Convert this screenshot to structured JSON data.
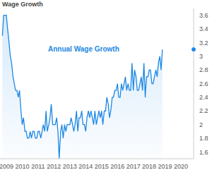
{
  "chart_data": {
    "type": "area",
    "title": "Wage Growth",
    "annotation": "Annual Wage Growth",
    "color": "#1e88e5",
    "grid": false,
    "x": [
      2008.75,
      2008.83,
      2008.92,
      2009.0,
      2009.08,
      2009.17,
      2009.25,
      2009.33,
      2009.42,
      2009.5,
      2009.58,
      2009.67,
      2009.75,
      2009.83,
      2009.92,
      2010.0,
      2010.08,
      2010.17,
      2010.25,
      2010.33,
      2010.42,
      2010.5,
      2010.58,
      2010.67,
      2010.75,
      2010.83,
      2010.92,
      2011.0,
      2011.08,
      2011.17,
      2011.25,
      2011.33,
      2011.42,
      2011.5,
      2011.58,
      2011.67,
      2011.75,
      2011.83,
      2011.92,
      2012.0,
      2012.08,
      2012.17,
      2012.25,
      2012.33,
      2012.42,
      2012.5,
      2012.58,
      2012.67,
      2012.75,
      2012.83,
      2012.92,
      2013.0,
      2013.08,
      2013.17,
      2013.25,
      2013.33,
      2013.42,
      2013.5,
      2013.58,
      2013.67,
      2013.75,
      2013.83,
      2013.92,
      2014.0,
      2014.08,
      2014.17,
      2014.25,
      2014.33,
      2014.42,
      2014.5,
      2014.58,
      2014.67,
      2014.75,
      2014.83,
      2014.92,
      2015.0,
      2015.08,
      2015.17,
      2015.25,
      2015.33,
      2015.42,
      2015.5,
      2015.58,
      2015.67,
      2015.75,
      2015.83,
      2015.92,
      2016.0,
      2016.08,
      2016.17,
      2016.25,
      2016.33,
      2016.42,
      2016.5,
      2016.58,
      2016.67,
      2016.75,
      2016.83,
      2016.92,
      2017.0,
      2017.08,
      2017.17,
      2017.25,
      2017.33,
      2017.42,
      2017.5,
      2017.58,
      2017.67,
      2017.75,
      2017.83,
      2017.92,
      2018.0,
      2018.08,
      2018.17,
      2018.25,
      2018.33,
      2018.42,
      2018.5,
      2018.58,
      2018.67,
      2018.75,
      2018.83
    ],
    "values": [
      3.3,
      3.6,
      3.6,
      3.6,
      3.4,
      3.2,
      3.0,
      2.9,
      2.7,
      2.6,
      2.5,
      2.5,
      2.4,
      2.5,
      2.2,
      2.0,
      2.1,
      1.9,
      1.9,
      1.8,
      1.8,
      1.9,
      1.8,
      1.9,
      1.9,
      1.8,
      1.8,
      1.9,
      1.9,
      1.8,
      1.9,
      2.0,
      1.9,
      2.2,
      1.9,
      2.0,
      2.1,
      2.3,
      2.0,
      2.0,
      2.0,
      2.1,
      1.9,
      1.5,
      1.9,
      2.0,
      1.8,
      2.0,
      1.9,
      2.0,
      2.0,
      2.0,
      2.1,
      2.0,
      1.9,
      2.0,
      2.2,
      1.9,
      2.1,
      2.1,
      2.2,
      2.0,
      2.0,
      1.9,
      2.1,
      2.2,
      2.1,
      2.2,
      2.1,
      2.0,
      2.2,
      2.0,
      2.1,
      2.2,
      2.1,
      2.2,
      2.0,
      2.2,
      2.2,
      2.4,
      2.3,
      2.1,
      2.2,
      2.4,
      2.4,
      2.5,
      2.5,
      2.6,
      2.4,
      2.4,
      2.6,
      2.5,
      2.6,
      2.7,
      2.5,
      2.6,
      2.5,
      2.5,
      2.9,
      2.5,
      2.8,
      2.7,
      2.5,
      2.5,
      2.6,
      2.7,
      2.5,
      2.9,
      2.4,
      2.7,
      2.7,
      2.8,
      2.8,
      2.6,
      2.6,
      2.7,
      2.8,
      2.7,
      2.9,
      3.0,
      2.8,
      3.1
    ],
    "xlim": [
      2008.6,
      2020.8
    ],
    "xticks": [
      2009,
      2010,
      2011,
      2012,
      2013,
      2014,
      2015,
      2016,
      2017,
      2018,
      2019,
      2020
    ],
    "ylim": [
      1.5,
      3.7
    ],
    "yticks": [
      1.6,
      1.8,
      2,
      2.2,
      2.4,
      2.6,
      2.8,
      3,
      3.2,
      3.4,
      3.6
    ]
  }
}
